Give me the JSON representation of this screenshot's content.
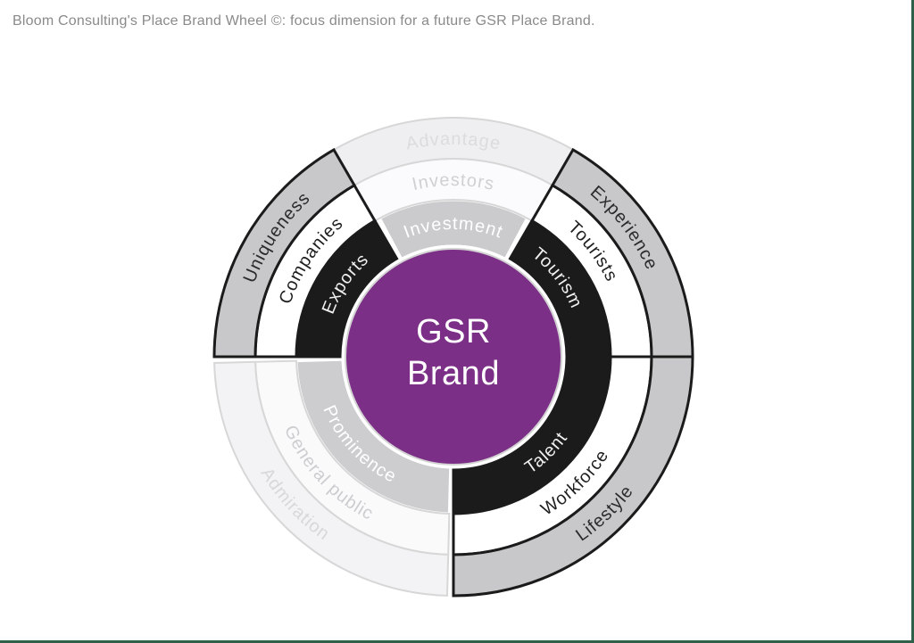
{
  "page": {
    "title": "Bloom Consulting's Place Brand Wheel ©: focus dimension for a future GSR Place Brand.",
    "background": "#ffffff",
    "border_color": "#2f6049"
  },
  "wheel": {
    "center_label": {
      "line1": "GSR",
      "line2": "Brand"
    },
    "center_color": "#7c2f87",
    "center_rim_color": "#d2d2d2",
    "center_text_color": "#ffffff",
    "stroke_active": "#1b1b1b",
    "stroke_faded": "#d7d7d7",
    "stroke_gap": "#ffffff",
    "sectors": [
      {
        "id": "investment",
        "state": "faded",
        "start": 60,
        "end": 120,
        "label_angle": 90,
        "segments": [
          {
            "ring": "inner",
            "label": "Investment",
            "bg": "#cbcbce",
            "text": "#ffffff",
            "start": 62,
            "end": 118
          },
          {
            "ring": "middle",
            "label": "Investors",
            "bg": "#fbfbfd",
            "text": "#d0d0d3"
          },
          {
            "ring": "outer",
            "label": "Advantage",
            "bg": "#efeff1",
            "text": "#dcdcdf"
          }
        ]
      },
      {
        "id": "admiration",
        "state": "faded",
        "start": 181.5,
        "end": 268.5,
        "label_angle": 223,
        "segments": [
          {
            "ring": "inner",
            "label": "Prominence",
            "bg": "#cdcdd0",
            "text": "#ffffff"
          },
          {
            "ring": "middle",
            "label": "General public",
            "bg": "#fafafb",
            "text": "#cdcdd1"
          },
          {
            "ring": "outer",
            "label": "Admiration",
            "bg": "#f3f3f5",
            "text": "#d8d8db"
          }
        ]
      },
      {
        "id": "experience",
        "state": "active",
        "start": 0,
        "end": 60,
        "label_angle": 37,
        "segments": [
          {
            "ring": "inner",
            "label": "Tourism",
            "bg": "#1b1b1b",
            "text": "#f0f0f0"
          },
          {
            "ring": "middle",
            "label": "Tourists",
            "bg": "#ffffff",
            "text": "#1f1f1f"
          },
          {
            "ring": "outer",
            "label": "Experience",
            "bg": "#c8c8cb",
            "text": "#2b2b2b"
          }
        ]
      },
      {
        "id": "uniqueness",
        "state": "active",
        "start": 120,
        "end": 180,
        "label_angle": 146,
        "segments": [
          {
            "ring": "inner",
            "label": "Exports",
            "bg": "#1b1b1b",
            "text": "#f0f0f0"
          },
          {
            "ring": "middle",
            "label": "Companies",
            "bg": "#ffffff",
            "text": "#1f1f1f"
          },
          {
            "ring": "outer",
            "label": "Uniqueness",
            "bg": "#c8c8cb",
            "text": "#2b2b2b"
          }
        ]
      },
      {
        "id": "lifestyle",
        "state": "active",
        "start": 270,
        "end": 360,
        "label_angle": 314,
        "segments": [
          {
            "ring": "inner",
            "label": "Talent",
            "bg": "#1b1b1b",
            "text": "#f0f0f0"
          },
          {
            "ring": "middle",
            "label": "Workforce",
            "bg": "#ffffff",
            "text": "#1f1f1f"
          },
          {
            "ring": "outer",
            "label": "Lifestyle",
            "bg": "#c8c8cb",
            "text": "#2b2b2b"
          }
        ]
      }
    ]
  }
}
